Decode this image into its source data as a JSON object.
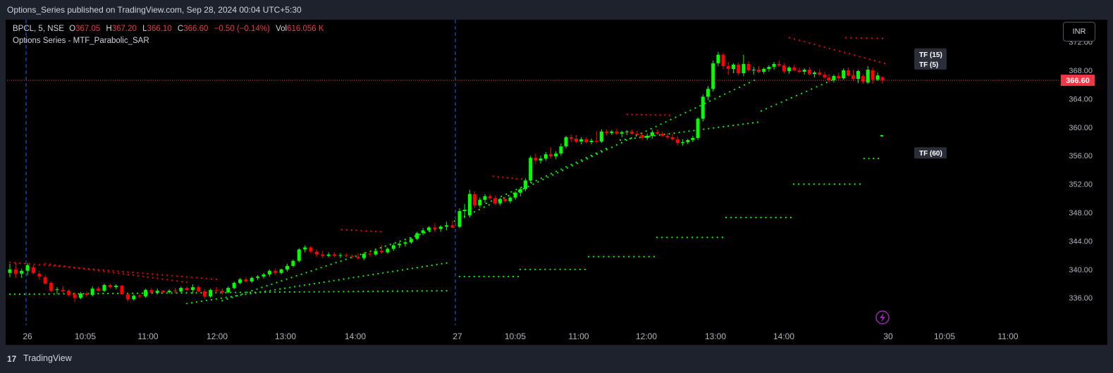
{
  "header": {
    "published": "Options_Series published on TradingView.com, Sep 28, 2024 00:04 UTC+5:30"
  },
  "legend": {
    "symbol": "BPCL, 5, NSE",
    "o_label": "O",
    "o": "367.05",
    "h_label": "H",
    "h": "367.20",
    "l_label": "L",
    "l": "366.10",
    "c_label": "C",
    "c": "366.60",
    "change": "−0.50 (−0.14%)",
    "vol_label": "Vol",
    "vol": "616.056 K",
    "indicator": "Options Series - MTF_Parabolic_SAR"
  },
  "currency_button": "INR",
  "footer": {
    "brand": "TradingView",
    "logo": "17"
  },
  "colors": {
    "up": "#00ff00",
    "down": "#ff0000",
    "bg": "#000000",
    "price_line": "#ff3b3b",
    "session_line": "#2962ff"
  },
  "chart_data": {
    "type": "candlestick",
    "ylim": [
      333,
      373
    ],
    "y_ticks": [
      "336.00",
      "340.00",
      "344.00",
      "348.00",
      "352.00",
      "356.00",
      "360.00",
      "364.00",
      "368.00",
      "372.00"
    ],
    "x_ticks": [
      "26",
      "10:05",
      "11:00",
      "12:00",
      "13:00",
      "14:00",
      "27",
      "10:05",
      "11:00",
      "12:00",
      "13:00",
      "14:00",
      "30",
      "10:05",
      "11:00"
    ],
    "last_price": "366.60",
    "tf_labels": [
      {
        "text": "TF (15)",
        "value": 370.3
      },
      {
        "text": "TF (5)",
        "value": 368.9
      },
      {
        "text": "TF (60)",
        "value": 356.4
      }
    ],
    "candles_day1": [
      {
        "o": 339.5,
        "h": 340.8,
        "l": 338.9,
        "c": 340.0
      },
      {
        "o": 340.0,
        "h": 341.0,
        "l": 338.8,
        "c": 339.4
      },
      {
        "o": 339.4,
        "h": 340.1,
        "l": 338.8,
        "c": 339.8
      },
      {
        "o": 339.8,
        "h": 340.9,
        "l": 339.2,
        "c": 340.6
      },
      {
        "o": 340.3,
        "h": 340.6,
        "l": 339.3,
        "c": 339.5
      },
      {
        "o": 339.4,
        "h": 339.8,
        "l": 338.6,
        "c": 339.0
      },
      {
        "o": 338.9,
        "h": 339.2,
        "l": 337.9,
        "c": 338.0
      },
      {
        "o": 338.1,
        "h": 338.3,
        "l": 336.8,
        "c": 337.0
      },
      {
        "o": 337.1,
        "h": 337.5,
        "l": 336.5,
        "c": 337.2
      },
      {
        "o": 337.1,
        "h": 337.6,
        "l": 336.7,
        "c": 336.9
      },
      {
        "o": 337.0,
        "h": 337.2,
        "l": 336.2,
        "c": 336.4
      },
      {
        "o": 336.5,
        "h": 336.8,
        "l": 335.4,
        "c": 336.0
      },
      {
        "o": 336.0,
        "h": 336.8,
        "l": 335.8,
        "c": 336.6
      },
      {
        "o": 336.6,
        "h": 336.9,
        "l": 336.1,
        "c": 336.4
      },
      {
        "o": 336.4,
        "h": 337.6,
        "l": 336.2,
        "c": 337.3
      },
      {
        "o": 337.3,
        "h": 337.6,
        "l": 336.9,
        "c": 337.0
      },
      {
        "o": 337.0,
        "h": 338.0,
        "l": 336.8,
        "c": 337.8
      },
      {
        "o": 337.8,
        "h": 338.0,
        "l": 337.3,
        "c": 337.5
      },
      {
        "o": 337.5,
        "h": 337.9,
        "l": 337.2,
        "c": 337.7
      },
      {
        "o": 337.7,
        "h": 337.8,
        "l": 336.4,
        "c": 336.5
      },
      {
        "o": 336.5,
        "h": 336.6,
        "l": 335.5,
        "c": 335.8
      },
      {
        "o": 335.8,
        "h": 336.5,
        "l": 335.6,
        "c": 336.3
      },
      {
        "o": 336.3,
        "h": 336.5,
        "l": 335.9,
        "c": 336.2
      },
      {
        "o": 336.2,
        "h": 337.3,
        "l": 336.0,
        "c": 337.1
      },
      {
        "o": 337.1,
        "h": 337.4,
        "l": 336.5,
        "c": 336.7
      },
      {
        "o": 336.7,
        "h": 337.3,
        "l": 336.5,
        "c": 337.0
      },
      {
        "o": 337.0,
        "h": 337.1,
        "l": 336.6,
        "c": 336.8
      },
      {
        "o": 336.8,
        "h": 337.2,
        "l": 336.6,
        "c": 337.0
      },
      {
        "o": 337.0,
        "h": 337.4,
        "l": 336.6,
        "c": 336.9
      },
      {
        "o": 336.9,
        "h": 337.6,
        "l": 336.7,
        "c": 337.4
      },
      {
        "o": 337.4,
        "h": 337.6,
        "l": 336.9,
        "c": 337.1
      },
      {
        "o": 337.1,
        "h": 337.9,
        "l": 336.6,
        "c": 337.5
      },
      {
        "o": 337.5,
        "h": 337.8,
        "l": 336.8,
        "c": 336.9
      },
      {
        "o": 336.9,
        "h": 337.2,
        "l": 335.9,
        "c": 336.2
      },
      {
        "o": 336.2,
        "h": 337.3,
        "l": 336.0,
        "c": 337.1
      },
      {
        "o": 337.1,
        "h": 337.5,
        "l": 336.7,
        "c": 337.0
      },
      {
        "o": 337.0,
        "h": 337.3,
        "l": 336.5,
        "c": 336.8
      },
      {
        "o": 336.8,
        "h": 337.6,
        "l": 336.6,
        "c": 337.4
      },
      {
        "o": 337.4,
        "h": 338.3,
        "l": 337.2,
        "c": 338.1
      },
      {
        "o": 338.1,
        "h": 338.8,
        "l": 337.9,
        "c": 338.6
      },
      {
        "o": 338.6,
        "h": 338.9,
        "l": 338.1,
        "c": 338.3
      },
      {
        "o": 338.3,
        "h": 339.0,
        "l": 338.1,
        "c": 338.8
      },
      {
        "o": 338.8,
        "h": 339.2,
        "l": 338.5,
        "c": 339.0
      },
      {
        "o": 339.0,
        "h": 339.5,
        "l": 338.7,
        "c": 339.3
      },
      {
        "o": 339.3,
        "h": 340.0,
        "l": 339.0,
        "c": 339.8
      },
      {
        "o": 339.8,
        "h": 340.1,
        "l": 339.2,
        "c": 339.5
      },
      {
        "o": 339.5,
        "h": 340.1,
        "l": 339.3,
        "c": 340.0
      },
      {
        "o": 340.0,
        "h": 340.8,
        "l": 339.7,
        "c": 340.5
      },
      {
        "o": 340.5,
        "h": 341.4,
        "l": 340.3,
        "c": 341.2
      },
      {
        "o": 341.2,
        "h": 343.0,
        "l": 341.0,
        "c": 342.8
      },
      {
        "o": 342.8,
        "h": 343.4,
        "l": 342.4,
        "c": 343.1
      },
      {
        "o": 343.1,
        "h": 343.3,
        "l": 342.2,
        "c": 342.5
      },
      {
        "o": 342.5,
        "h": 342.8,
        "l": 341.8,
        "c": 342.1
      },
      {
        "o": 342.1,
        "h": 342.6,
        "l": 341.6,
        "c": 341.9
      },
      {
        "o": 341.9,
        "h": 342.4,
        "l": 341.7,
        "c": 342.1
      },
      {
        "o": 342.1,
        "h": 342.4,
        "l": 341.7,
        "c": 341.9
      },
      {
        "o": 341.9,
        "h": 342.3,
        "l": 341.6,
        "c": 342.0
      },
      {
        "o": 342.0,
        "h": 342.3,
        "l": 341.7,
        "c": 341.9
      },
      {
        "o": 341.9,
        "h": 342.1,
        "l": 341.5,
        "c": 341.8
      },
      {
        "o": 341.8,
        "h": 342.3,
        "l": 341.4,
        "c": 341.6
      },
      {
        "o": 341.6,
        "h": 342.4,
        "l": 341.3,
        "c": 342.2
      },
      {
        "o": 342.2,
        "h": 342.5,
        "l": 341.8,
        "c": 342.1
      },
      {
        "o": 342.1,
        "h": 342.8,
        "l": 341.9,
        "c": 342.6
      },
      {
        "o": 342.6,
        "h": 343.4,
        "l": 342.2,
        "c": 342.4
      },
      {
        "o": 342.4,
        "h": 343.1,
        "l": 342.2,
        "c": 342.9
      },
      {
        "o": 342.9,
        "h": 343.7,
        "l": 342.6,
        "c": 343.4
      },
      {
        "o": 343.4,
        "h": 343.8,
        "l": 343.0,
        "c": 343.6
      },
      {
        "o": 343.6,
        "h": 344.0,
        "l": 343.2,
        "c": 343.8
      },
      {
        "o": 343.8,
        "h": 344.5,
        "l": 343.6,
        "c": 344.3
      },
      {
        "o": 344.3,
        "h": 345.3,
        "l": 344.1,
        "c": 345.1
      },
      {
        "o": 345.1,
        "h": 345.8,
        "l": 344.8,
        "c": 345.5
      },
      {
        "o": 345.5,
        "h": 346.1,
        "l": 345.3,
        "c": 345.9
      },
      {
        "o": 345.9,
        "h": 346.5,
        "l": 345.2,
        "c": 345.7
      },
      {
        "o": 345.7,
        "h": 346.2,
        "l": 345.3,
        "c": 346.0
      },
      {
        "o": 346.0,
        "h": 346.7,
        "l": 345.5,
        "c": 346.2
      },
      {
        "o": 346.2,
        "h": 346.9,
        "l": 345.8,
        "c": 345.9
      }
    ],
    "candles_day2": [
      {
        "o": 346.0,
        "h": 348.6,
        "l": 345.8,
        "c": 348.2
      },
      {
        "o": 348.2,
        "h": 349.2,
        "l": 347.2,
        "c": 348.4
      },
      {
        "o": 347.6,
        "h": 351.2,
        "l": 347.3,
        "c": 350.6
      },
      {
        "o": 350.6,
        "h": 351.0,
        "l": 348.6,
        "c": 349.0
      },
      {
        "o": 349.0,
        "h": 350.1,
        "l": 348.7,
        "c": 349.8
      },
      {
        "o": 349.8,
        "h": 350.6,
        "l": 349.4,
        "c": 350.3
      },
      {
        "o": 350.3,
        "h": 350.6,
        "l": 349.8,
        "c": 350.0
      },
      {
        "o": 350.0,
        "h": 350.3,
        "l": 349.1,
        "c": 349.3
      },
      {
        "o": 349.3,
        "h": 350.1,
        "l": 349.0,
        "c": 349.9
      },
      {
        "o": 349.9,
        "h": 350.2,
        "l": 349.4,
        "c": 349.6
      },
      {
        "o": 349.6,
        "h": 350.3,
        "l": 349.3,
        "c": 350.1
      },
      {
        "o": 350.1,
        "h": 351.0,
        "l": 349.8,
        "c": 350.8
      },
      {
        "o": 350.8,
        "h": 351.5,
        "l": 350.3,
        "c": 351.3
      },
      {
        "o": 351.3,
        "h": 352.8,
        "l": 351.0,
        "c": 352.5
      },
      {
        "o": 352.5,
        "h": 356.0,
        "l": 352.2,
        "c": 355.7
      },
      {
        "o": 355.7,
        "h": 356.3,
        "l": 354.8,
        "c": 355.3
      },
      {
        "o": 355.3,
        "h": 356.0,
        "l": 354.9,
        "c": 355.6
      },
      {
        "o": 355.6,
        "h": 356.5,
        "l": 355.3,
        "c": 356.2
      },
      {
        "o": 356.2,
        "h": 357.2,
        "l": 355.6,
        "c": 355.9
      },
      {
        "o": 355.9,
        "h": 356.6,
        "l": 355.5,
        "c": 356.3
      },
      {
        "o": 356.3,
        "h": 357.7,
        "l": 356.0,
        "c": 357.3
      },
      {
        "o": 357.3,
        "h": 358.8,
        "l": 357.0,
        "c": 358.6
      },
      {
        "o": 358.6,
        "h": 359.0,
        "l": 357.9,
        "c": 358.4
      },
      {
        "o": 358.4,
        "h": 358.9,
        "l": 357.8,
        "c": 358.0
      },
      {
        "o": 358.0,
        "h": 358.6,
        "l": 357.6,
        "c": 358.3
      },
      {
        "o": 358.3,
        "h": 358.6,
        "l": 357.7,
        "c": 357.9
      },
      {
        "o": 357.9,
        "h": 358.4,
        "l": 357.6,
        "c": 358.1
      },
      {
        "o": 358.1,
        "h": 359.5,
        "l": 357.7,
        "c": 358.0
      },
      {
        "o": 358.0,
        "h": 359.7,
        "l": 357.8,
        "c": 359.4
      },
      {
        "o": 359.4,
        "h": 359.7,
        "l": 358.8,
        "c": 359.2
      },
      {
        "o": 359.2,
        "h": 359.6,
        "l": 358.9,
        "c": 359.4
      },
      {
        "o": 359.4,
        "h": 359.8,
        "l": 358.9,
        "c": 359.1
      },
      {
        "o": 359.1,
        "h": 359.5,
        "l": 358.6,
        "c": 359.3
      },
      {
        "o": 359.3,
        "h": 359.6,
        "l": 358.9,
        "c": 359.4
      },
      {
        "o": 359.4,
        "h": 359.7,
        "l": 358.9,
        "c": 359.1
      },
      {
        "o": 359.1,
        "h": 359.5,
        "l": 358.7,
        "c": 358.9
      },
      {
        "o": 358.9,
        "h": 359.3,
        "l": 358.2,
        "c": 358.5
      },
      {
        "o": 358.5,
        "h": 359.1,
        "l": 358.2,
        "c": 358.8
      },
      {
        "o": 358.8,
        "h": 359.6,
        "l": 358.4,
        "c": 359.3
      },
      {
        "o": 359.3,
        "h": 359.7,
        "l": 358.9,
        "c": 359.1
      },
      {
        "o": 359.1,
        "h": 359.4,
        "l": 358.6,
        "c": 358.8
      },
      {
        "o": 358.8,
        "h": 359.2,
        "l": 358.3,
        "c": 358.6
      },
      {
        "o": 358.6,
        "h": 359.1,
        "l": 358.1,
        "c": 358.3
      },
      {
        "o": 358.3,
        "h": 358.7,
        "l": 357.5,
        "c": 357.8
      },
      {
        "o": 357.8,
        "h": 358.3,
        "l": 357.4,
        "c": 357.9
      },
      {
        "o": 357.9,
        "h": 358.4,
        "l": 357.6,
        "c": 358.2
      },
      {
        "o": 358.2,
        "h": 358.8,
        "l": 357.9,
        "c": 358.5
      },
      {
        "o": 358.5,
        "h": 361.4,
        "l": 358.2,
        "c": 361.2
      },
      {
        "o": 361.2,
        "h": 364.6,
        "l": 360.8,
        "c": 364.3
      },
      {
        "o": 364.3,
        "h": 365.8,
        "l": 363.8,
        "c": 365.4
      },
      {
        "o": 365.4,
        "h": 369.4,
        "l": 365.0,
        "c": 369.0
      },
      {
        "o": 369.0,
        "h": 370.6,
        "l": 368.6,
        "c": 370.2
      },
      {
        "o": 370.2,
        "h": 370.5,
        "l": 368.2,
        "c": 368.6
      },
      {
        "o": 368.6,
        "h": 369.2,
        "l": 367.4,
        "c": 368.2
      },
      {
        "o": 368.2,
        "h": 369.0,
        "l": 367.6,
        "c": 368.8
      },
      {
        "o": 368.8,
        "h": 369.1,
        "l": 367.3,
        "c": 367.6
      },
      {
        "o": 367.6,
        "h": 370.2,
        "l": 367.2,
        "c": 368.9
      },
      {
        "o": 368.9,
        "h": 369.3,
        "l": 367.8,
        "c": 368.0
      },
      {
        "o": 368.0,
        "h": 368.5,
        "l": 367.4,
        "c": 368.1
      },
      {
        "o": 368.1,
        "h": 368.6,
        "l": 367.6,
        "c": 367.8
      },
      {
        "o": 367.8,
        "h": 368.4,
        "l": 367.5,
        "c": 368.2
      },
      {
        "o": 368.2,
        "h": 368.7,
        "l": 367.8,
        "c": 368.5
      },
      {
        "o": 368.5,
        "h": 369.2,
        "l": 368.1,
        "c": 368.9
      },
      {
        "o": 368.9,
        "h": 369.4,
        "l": 368.5,
        "c": 368.7
      },
      {
        "o": 368.7,
        "h": 369.0,
        "l": 367.6,
        "c": 367.9
      },
      {
        "o": 367.9,
        "h": 368.6,
        "l": 367.5,
        "c": 368.4
      },
      {
        "o": 368.4,
        "h": 368.8,
        "l": 367.9,
        "c": 368.0
      },
      {
        "o": 368.0,
        "h": 368.4,
        "l": 367.6,
        "c": 367.8
      },
      {
        "o": 367.8,
        "h": 368.3,
        "l": 367.4,
        "c": 368.1
      },
      {
        "o": 368.1,
        "h": 368.5,
        "l": 367.3,
        "c": 367.5
      },
      {
        "o": 367.5,
        "h": 367.9,
        "l": 367.0,
        "c": 367.7
      },
      {
        "o": 367.7,
        "h": 368.1,
        "l": 367.2,
        "c": 367.4
      },
      {
        "o": 367.4,
        "h": 367.8,
        "l": 366.8,
        "c": 367.0
      }
    ],
    "candles_day3": [
      {
        "o": 367.0,
        "h": 367.5,
        "l": 366.3,
        "c": 366.6
      },
      {
        "o": 366.6,
        "h": 367.4,
        "l": 366.3,
        "c": 367.2
      },
      {
        "o": 367.2,
        "h": 367.7,
        "l": 366.6,
        "c": 366.9
      },
      {
        "o": 366.9,
        "h": 368.3,
        "l": 366.7,
        "c": 368.0
      },
      {
        "o": 368.0,
        "h": 368.4,
        "l": 367.1,
        "c": 367.3
      },
      {
        "o": 367.3,
        "h": 368.1,
        "l": 366.5,
        "c": 366.8
      },
      {
        "o": 366.8,
        "h": 368.1,
        "l": 366.2,
        "c": 367.9
      },
      {
        "o": 367.2,
        "h": 367.5,
        "l": 366.1,
        "c": 366.4
      },
      {
        "o": 366.3,
        "h": 368.6,
        "l": 366.1,
        "c": 368.1
      },
      {
        "o": 368.0,
        "h": 368.4,
        "l": 366.1,
        "c": 366.7
      },
      {
        "o": 366.7,
        "h": 367.7,
        "l": 366.5,
        "c": 367.3
      },
      {
        "o": 367.05,
        "h": 367.2,
        "l": 366.1,
        "c": 366.6
      }
    ],
    "sar_segments": [
      {
        "tf": "5",
        "color": "#ff0000",
        "from": 0,
        "to": 35,
        "start": 341.0,
        "end": 338.6
      },
      {
        "tf": "15",
        "color": "#ff0000",
        "from": 6,
        "to": 30,
        "start": 340.8,
        "end": 338.2
      },
      {
        "tf": "5",
        "color": "#00ff00",
        "from": 36,
        "to": 72,
        "start": 335.6,
        "end": 345.6
      },
      {
        "tf": "15",
        "color": "#00ff00",
        "from": 30,
        "to": 76,
        "start": 335.2,
        "end": 340.9
      },
      {
        "tf": "60",
        "color": "#00ff00",
        "from": 0,
        "to": 75,
        "start": 336.5,
        "end": 337.0
      }
    ]
  }
}
